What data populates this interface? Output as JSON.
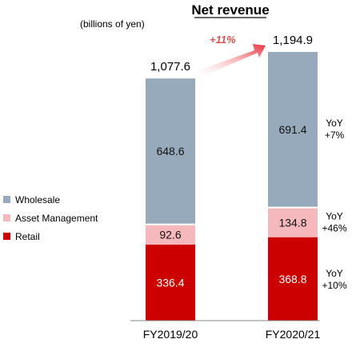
{
  "chart_data": {
    "type": "bar",
    "stacked": true,
    "title": "Net revenue",
    "unit_label": "(billions of yen)",
    "categories": [
      "FY2019/20",
      "FY2020/21"
    ],
    "series": [
      {
        "name": "Retail",
        "values": [
          336.4,
          368.8
        ],
        "color": "#cc0000",
        "label_color": "#ffffff",
        "yoy": "YoY\n+10%"
      },
      {
        "name": "Asset Management",
        "values": [
          92.6,
          134.8
        ],
        "color": "#f5b8bc",
        "label_color": "#111111",
        "yoy": "YoY\n+46%"
      },
      {
        "name": "Wholesale",
        "values": [
          648.6,
          691.4
        ],
        "color": "#96aabc",
        "label_color": "#111111",
        "yoy": "YoY\n+7%"
      }
    ],
    "value_labels": [
      [
        "336.4",
        "368.8"
      ],
      [
        "92.6",
        "134.8"
      ],
      [
        "648.6",
        "691.4"
      ]
    ],
    "totals": [
      "1,077.6",
      "1,194.9"
    ],
    "growth_annotation": "+11%",
    "legend_order": [
      "Wholesale",
      "Asset Management",
      "Retail"
    ],
    "legend_position": "left",
    "ylim": [
      0,
      1194.9
    ],
    "grid": false
  }
}
